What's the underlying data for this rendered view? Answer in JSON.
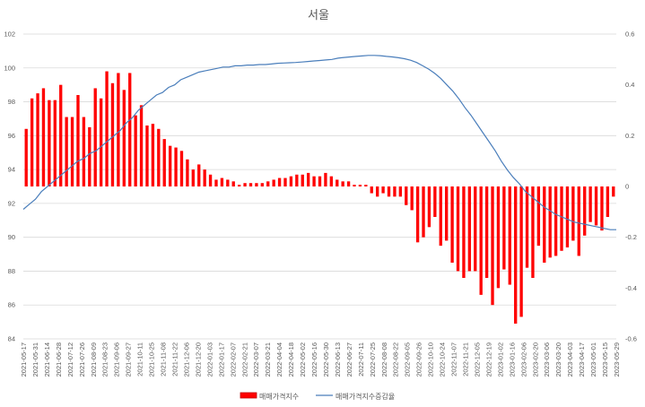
{
  "chart_data": {
    "type": "bar+line",
    "title": "서울",
    "y_left": {
      "min": 84,
      "max": 102,
      "ticks": [
        84,
        86,
        88,
        90,
        92,
        94,
        96,
        98,
        100,
        102
      ]
    },
    "y_right": {
      "min": -0.6,
      "max": 0.6,
      "ticks": [
        "-0.6",
        "-0.4",
        "-0.2",
        "0",
        "0.2",
        "0.4",
        "0.6"
      ],
      "tick_values": [
        -0.6,
        -0.4,
        -0.2,
        0,
        0.2,
        0.4,
        0.6
      ]
    },
    "bar_base": 93,
    "x_labels": [
      "2021-05-17",
      "2021-05-31",
      "2021-06-14",
      "2021-06-28",
      "2021-07-12",
      "2021-07-26",
      "2021-08-09",
      "2021-08-23",
      "2021-09-06",
      "2021-09-27",
      "2021-10-11",
      "2021-10-25",
      "2021-11-08",
      "2021-11-22",
      "2021-12-06",
      "2021-12-20",
      "2022-01-03",
      "2022-01-17",
      "2022-02-07",
      "2022-02-21",
      "2022-03-07",
      "2022-03-21",
      "2022-04-04",
      "2022-04-18",
      "2022-05-02",
      "2022-05-16",
      "2022-05-30",
      "2022-06-13",
      "2022-06-27",
      "2022-07-11",
      "2022-07-25",
      "2022-08-08",
      "2022-08-22",
      "2022-09-05",
      "2022-09-26",
      "2022-10-10",
      "2022-10-24",
      "2022-11-07",
      "2022-11-21",
      "2022-12-05",
      "2022-12-19",
      "2023-01-02",
      "2023-01-16",
      "2023-02-06",
      "2023-02-20",
      "2023-03-06",
      "2023-03-20",
      "2023-04-03",
      "2023-04-17",
      "2023-05-01",
      "2023-05-15",
      "2023-05-29"
    ],
    "series": [
      {
        "name": "매매가격지수",
        "type": "bar",
        "axis": "left",
        "color": "#ff0000",
        "values": [
          96.4,
          98.2,
          98.5,
          98.8,
          98.1,
          98.1,
          99.0,
          97.1,
          97.1,
          98.4,
          97.1,
          96.5,
          98.8,
          98.2,
          99.8,
          99.1,
          99.7,
          98.7,
          99.7,
          97.2,
          97.8,
          96.6,
          96.7,
          96.4,
          95.8,
          95.4,
          95.3,
          95.1,
          94.6,
          94.0,
          94.3,
          94.0,
          93.7,
          93.4,
          93.5,
          93.4,
          93.3,
          93.1,
          93.2,
          93.2,
          93.2,
          93.2,
          93.3,
          93.4,
          93.5,
          93.5,
          93.6,
          93.7,
          93.7,
          93.8,
          93.6,
          93.6,
          93.8,
          93.6,
          93.4,
          93.3,
          93.3,
          93.1,
          93.1,
          93.1,
          92.6,
          92.4,
          92.6,
          92.4,
          92.4,
          92.4,
          91.9,
          91.6,
          89.7,
          90.0,
          90.6,
          91.2,
          89.5,
          89.8,
          88.5,
          88.0,
          87.6,
          88.0,
          88.0,
          86.6,
          87.6,
          86.0,
          87.0,
          88.1,
          87.2,
          84.9,
          85.3,
          88.2,
          87.6,
          89.5,
          88.5,
          88.8,
          88.9,
          89.2,
          89.4,
          89.8,
          88.9,
          90.1,
          90.9,
          90.7,
          90.4,
          91.2,
          92.4
        ]
      },
      {
        "name": "매매가격지수증감율",
        "type": "line",
        "axis": "right",
        "color": "#4a7ebb",
        "values": [
          -0.09,
          -0.07,
          -0.05,
          -0.02,
          0.0,
          0.02,
          0.04,
          0.06,
          0.08,
          0.1,
          0.11,
          0.13,
          0.14,
          0.16,
          0.18,
          0.2,
          0.22,
          0.25,
          0.27,
          0.3,
          0.32,
          0.34,
          0.36,
          0.37,
          0.39,
          0.4,
          0.42,
          0.43,
          0.44,
          0.45,
          0.455,
          0.46,
          0.465,
          0.47,
          0.47,
          0.475,
          0.475,
          0.478,
          0.478,
          0.48,
          0.48,
          0.482,
          0.485,
          0.486,
          0.487,
          0.488,
          0.49,
          0.492,
          0.494,
          0.496,
          0.498,
          0.5,
          0.505,
          0.508,
          0.51,
          0.512,
          0.514,
          0.516,
          0.516,
          0.515,
          0.512,
          0.51,
          0.507,
          0.503,
          0.497,
          0.488,
          0.475,
          0.462,
          0.445,
          0.425,
          0.4,
          0.375,
          0.345,
          0.31,
          0.28,
          0.245,
          0.21,
          0.175,
          0.14,
          0.1,
          0.065,
          0.035,
          0.01,
          -0.02,
          -0.04,
          -0.06,
          -0.08,
          -0.095,
          -0.11,
          -0.12,
          -0.13,
          -0.14,
          -0.145,
          -0.15,
          -0.155,
          -0.16,
          -0.165,
          -0.17,
          -0.17
        ]
      }
    ],
    "legend_position": "bottom",
    "grid": true
  }
}
